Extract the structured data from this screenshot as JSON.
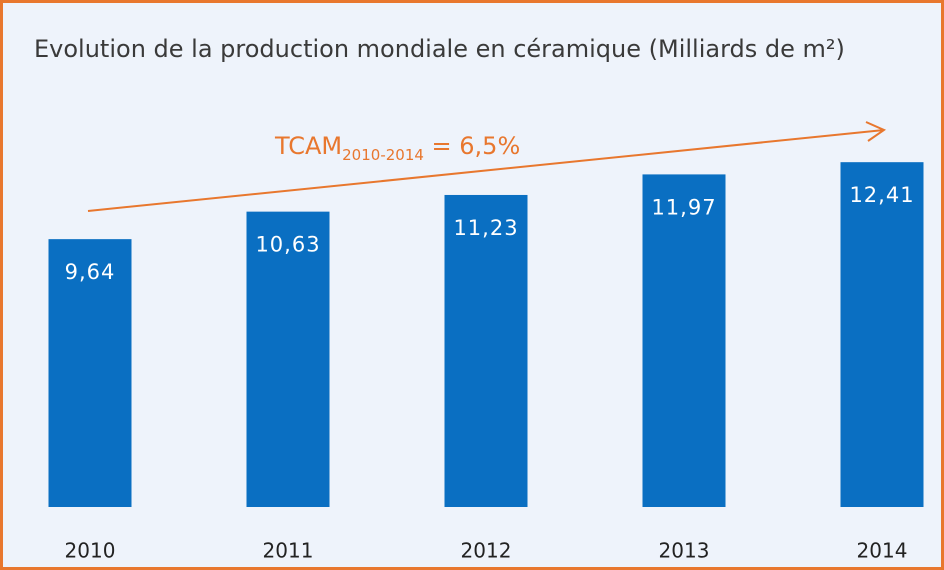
{
  "chart_data": {
    "type": "bar",
    "title": "Evolution de la production mondiale en céramique (Milliards de m²)",
    "categories": [
      "2010",
      "2011",
      "2012",
      "2013",
      "2014"
    ],
    "values": [
      9.64,
      10.63,
      11.23,
      11.97,
      12.41
    ],
    "value_labels": [
      "9,64",
      "10,63",
      "11,23",
      "11,97",
      "12,41"
    ],
    "color": "#0a6fc2",
    "ylim": [
      0,
      14
    ],
    "annotation": {
      "main": "TCAM",
      "sub": "2010-2014",
      "rest": " = 6,5%",
      "color": "#e8772e"
    }
  }
}
